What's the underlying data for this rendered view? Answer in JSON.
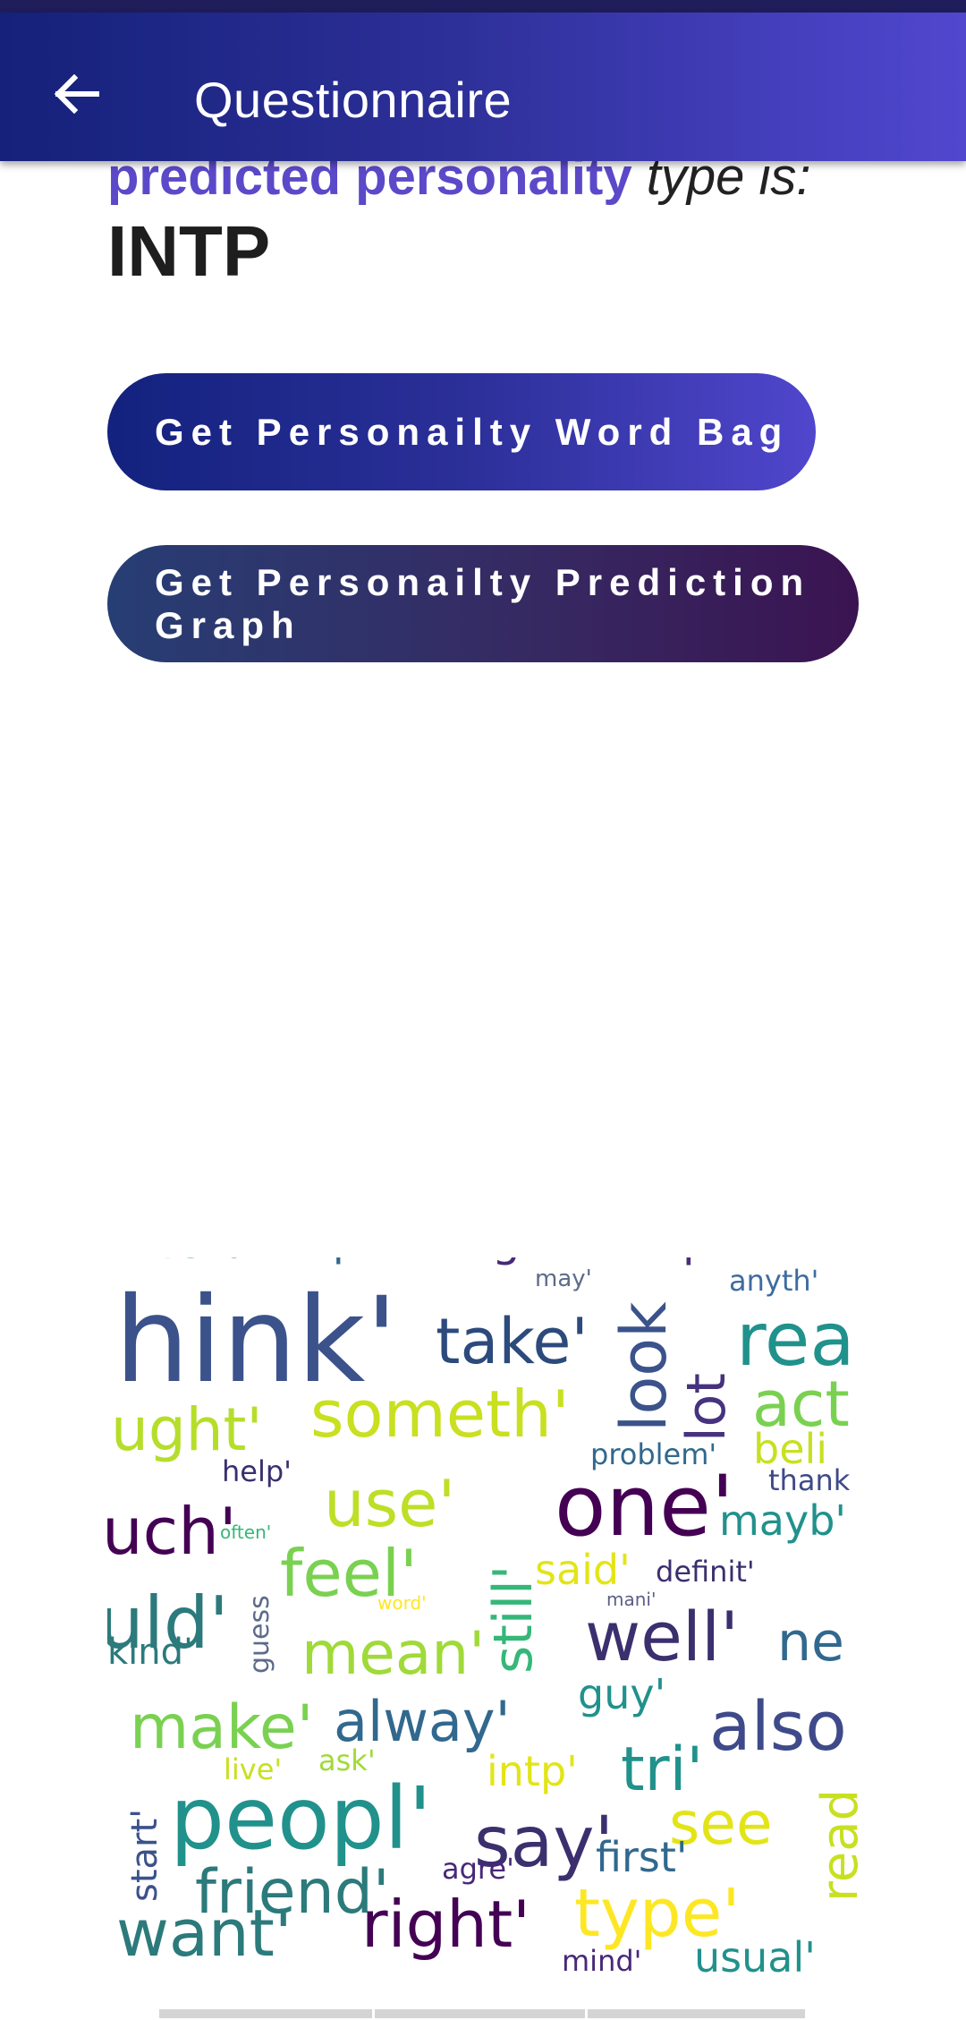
{
  "appbar": {
    "title": "Questionnaire",
    "back_icon": "arrow-left-icon"
  },
  "result": {
    "highlight": "predicted personality",
    "suffix": "type is:",
    "type": "INTP"
  },
  "buttons": {
    "word_bag": "Get Personailty Word Bag",
    "prediction_graph": "Get Personailty Prediction Graph"
  },
  "colors": {
    "appbar_start": "#15217a",
    "appbar_end": "#5147cf",
    "highlight": "#5b49c9",
    "button2_start": "#273e74",
    "button2_end": "#3a1451"
  },
  "wordcloud": {
    "words": [
      {
        "text": "fer'",
        "color": "#2a9d8f"
      },
      {
        "text": "tell'",
        "color": "#3b528b"
      },
      {
        "text": "point'",
        "color": "#31688e"
      },
      {
        "text": "got'",
        "color": "#482878"
      },
      {
        "text": "probabl",
        "color": "#472d7b"
      },
      {
        "text": "may'",
        "color": "#5d6b8a"
      },
      {
        "text": "anyth'",
        "color": "#3e6ca0"
      },
      {
        "text": "hink'",
        "color": "#3b528b"
      },
      {
        "text": "take'",
        "color": "#2c4a7c"
      },
      {
        "text": "look",
        "color": "#3b528b"
      },
      {
        "text": "lot",
        "color": "#46327e"
      },
      {
        "text": "rea",
        "color": "#21918c"
      },
      {
        "text": "act",
        "color": "#7ad151"
      },
      {
        "text": "ught'",
        "color": "#b5de2b"
      },
      {
        "text": "someth'",
        "color": "#c8e020"
      },
      {
        "text": "problem'",
        "color": "#31688e"
      },
      {
        "text": "beli",
        "color": "#c8e020"
      },
      {
        "text": "help'",
        "color": "#3b2f6e"
      },
      {
        "text": "thank",
        "color": "#3e4a89"
      },
      {
        "text": "uch'",
        "color": "#440154"
      },
      {
        "text": "use'",
        "color": "#bddf26"
      },
      {
        "text": "one'",
        "color": "#440154"
      },
      {
        "text": "mayb'",
        "color": "#21918c"
      },
      {
        "text": "often'",
        "color": "#35b779"
      },
      {
        "text": "feel'",
        "color": "#7ad151"
      },
      {
        "text": "still'",
        "color": "#35b779"
      },
      {
        "text": "said'",
        "color": "#e3e418"
      },
      {
        "text": "definit'",
        "color": "#3b2f6e"
      },
      {
        "text": "uld'",
        "color": "#2c7a7b"
      },
      {
        "text": "word'",
        "color": "#fde725"
      },
      {
        "text": "mani'",
        "color": "#5d5d8a"
      },
      {
        "text": "guess",
        "color": "#5d6b8a"
      },
      {
        "text": "well'",
        "color": "#3b2f6e"
      },
      {
        "text": "ne",
        "color": "#31688e"
      },
      {
        "text": "kind'",
        "color": "#2c7a7b"
      },
      {
        "text": "mean'",
        "color": "#a0da39"
      },
      {
        "text": "make'",
        "color": "#7ad151"
      },
      {
        "text": "alway'",
        "color": "#31688e"
      },
      {
        "text": "guy'",
        "color": "#21918c"
      },
      {
        "text": "also",
        "color": "#3e4a89"
      },
      {
        "text": "live'",
        "color": "#c8e020"
      },
      {
        "text": "ask'",
        "color": "#a0da39"
      },
      {
        "text": "intp'",
        "color": "#e3e418"
      },
      {
        "text": "tri'",
        "color": "#21918c"
      },
      {
        "text": "start'",
        "color": "#3b528b"
      },
      {
        "text": "peopl'",
        "color": "#21918c"
      },
      {
        "text": "say'",
        "color": "#3b2f6e"
      },
      {
        "text": "see",
        "color": "#e3e418"
      },
      {
        "text": "read",
        "color": "#c8e020"
      },
      {
        "text": "friend'",
        "color": "#2c7a7b"
      },
      {
        "text": "agre'",
        "color": "#482878"
      },
      {
        "text": "first'",
        "color": "#31688e"
      },
      {
        "text": "type'",
        "color": "#fde725"
      },
      {
        "text": "want'",
        "color": "#2c7a7b"
      },
      {
        "text": "right'",
        "color": "#440154"
      },
      {
        "text": "mind'",
        "color": "#482878"
      },
      {
        "text": "usual'",
        "color": "#21918c"
      }
    ]
  }
}
